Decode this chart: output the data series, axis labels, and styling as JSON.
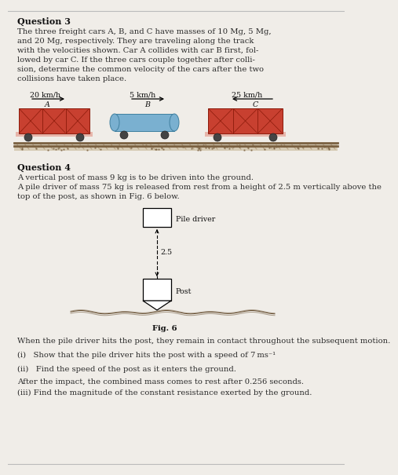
{
  "bg_color": "#f0ede8",
  "q3_title": "Question 3",
  "q3_text_lines": [
    "The three freight cars A, B, and C have masses of 10 Mg, 5 Mg,",
    "and 20 Mg, respectively. They are traveling along the track",
    "with the velocities shown. Car A collides with car B first, fol-",
    "lowed by car C. If the three cars couple together after colli-",
    "sion, determine the common velocity of the cars after the two",
    "collisions have taken place."
  ],
  "q3_italic_words": [
    "A,",
    "B,",
    "C",
    "A",
    "B",
    "C"
  ],
  "car_A_label": "A",
  "car_B_label": "B",
  "car_C_label": "C",
  "car_A_speed": "20 km/h",
  "car_B_speed": "5 km/h",
  "car_C_speed": "25 km/h",
  "q4_title": "Question 4",
  "q4_text1": "A vertical post of mass 9 kg is to be driven into the ground.",
  "q4_text2": "A pile driver of mass 75 kg is released from rest from a height of 2.5 m vertically above the",
  "q4_text3": "top of the post, as shown in Fig. 6 below.",
  "pile_driver_label": "Pile driver",
  "height_label": "2.5",
  "post_label": "Post",
  "fig_label": "Fig. 6",
  "q4_sub1": "When the pile driver hits the post, they remain in contact throughout the subsequent motion.",
  "q4_i": "(i)   Show that the pile driver hits the post with a speed of 7 ms⁻¹",
  "q4_ii": "(ii)   Find the speed of the post as it enters the ground.",
  "q4_between": "After the impact, the combined mass comes to rest after 0.256 seconds.",
  "q4_iii": "(iii) Find the magnitude of the constant resistance exerted by the ground.",
  "car_A_color": "#c84030",
  "car_C_color": "#c84030",
  "car_B_color": "#7ab0d0",
  "car_edge": "#8b1a0a",
  "wheel_color": "#444444",
  "track_color": "#8B7355",
  "text_color": "#2a2a2a",
  "title_color": "#111111"
}
